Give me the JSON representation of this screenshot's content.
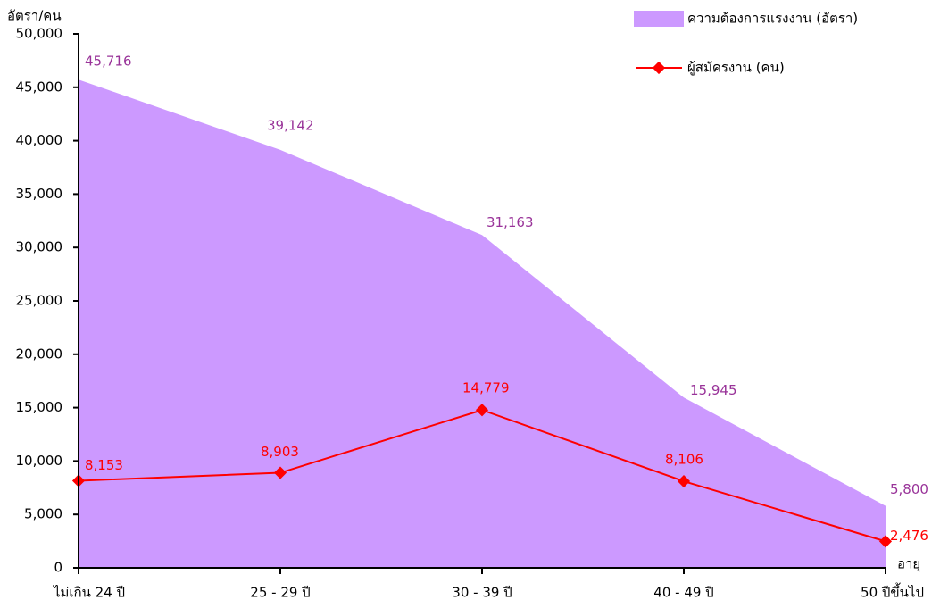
{
  "chart_data": {
    "type": "area-line",
    "y_axis_label": "อัตรา/คน",
    "x_axis_label": "อายุ",
    "categories": [
      "ไม่เกิน  24  ปี",
      "25 - 29  ปี",
      "30 - 39  ปี",
      "40 - 49  ปี",
      "50  ปีขึ้นไป"
    ],
    "series": [
      {
        "name": "ความต้องการแรงงาน (อัตรา)",
        "kind": "area",
        "color": "#cc99ff",
        "label_color": "#993399",
        "values": [
          45716,
          39142,
          31163,
          15945,
          5800
        ],
        "value_labels": [
          "45,716",
          "39,142",
          "31,163",
          "15,945",
          "5,800"
        ]
      },
      {
        "name": "ผู้สมัครงาน (คน)",
        "kind": "line",
        "color": "#ff0000",
        "label_color": "#ff0000",
        "values": [
          8153,
          8903,
          14779,
          8106,
          2476
        ],
        "value_labels": [
          "8,153",
          "8,903",
          "14,779",
          "8,106",
          "2,476"
        ]
      }
    ],
    "ylim": [
      0,
      50000
    ],
    "yticks": [
      0,
      {
        "value": 5000,
        "label": "5,000"
      },
      {
        "value": 10000,
        "label": "10,000"
      },
      {
        "value": 15000,
        "label": "15,000"
      },
      {
        "value": 20000,
        "label": "20,000"
      },
      {
        "value": 25000,
        "label": "25,000"
      },
      {
        "value": 30000,
        "label": "30,000"
      },
      {
        "value": 35000,
        "label": "35,000"
      },
      {
        "value": 40000,
        "label": "40,000"
      },
      {
        "value": 45000,
        "label": "45,000"
      },
      {
        "value": 50000,
        "label": "50,000"
      }
    ],
    "legend": "top-right"
  }
}
